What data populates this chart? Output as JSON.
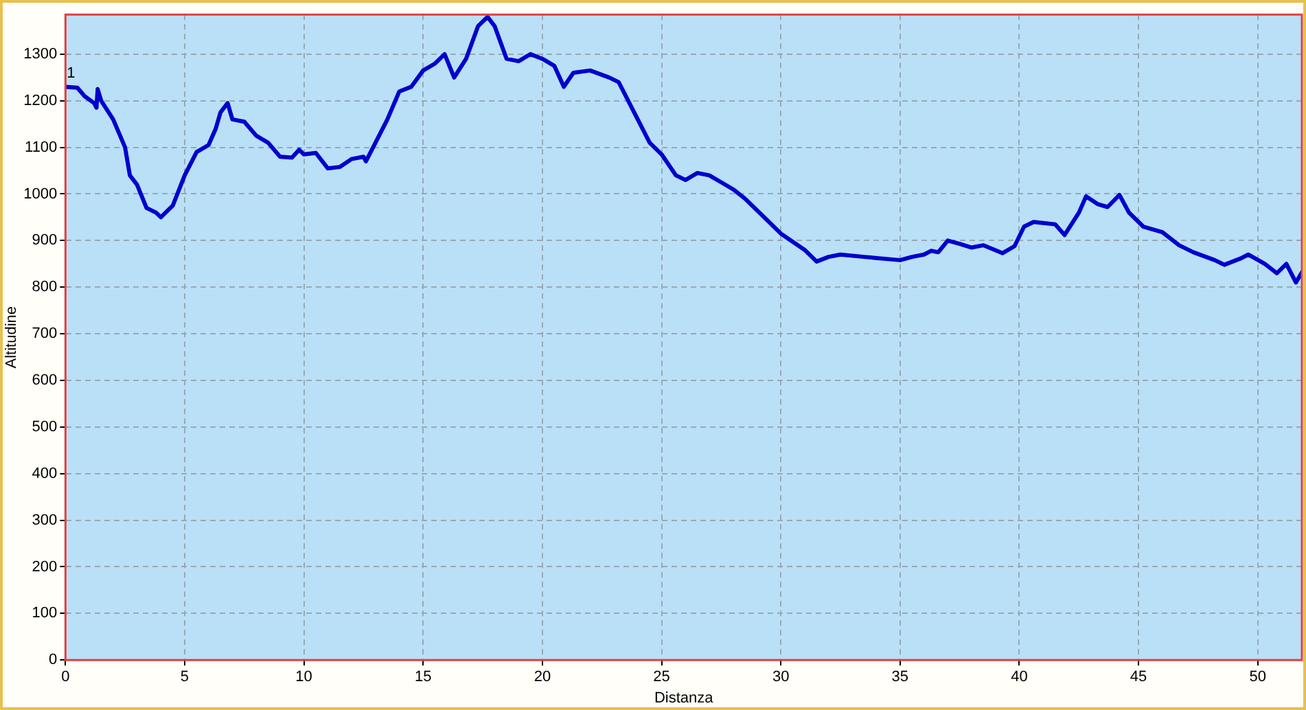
{
  "chart_data": {
    "type": "line",
    "xlabel": "Distanza",
    "ylabel": "Altitudine",
    "xlim": [
      0,
      51.85
    ],
    "ylim": [
      0,
      1385
    ],
    "xticks": [
      0,
      5,
      10,
      15,
      20,
      25,
      30,
      35,
      40,
      45,
      50
    ],
    "yticks": [
      0,
      100,
      200,
      300,
      400,
      500,
      600,
      700,
      800,
      900,
      1000,
      1100,
      1200,
      1300
    ],
    "grid": true,
    "legend": false,
    "marker": "none",
    "line_style": "solid",
    "annotations": [
      {
        "text": "1",
        "x": 0,
        "y": 1230
      }
    ],
    "series": [
      {
        "color": "#0000cc",
        "x": [
          0,
          0.5,
          0.8,
          1.2,
          1.3,
          1.35,
          1.5,
          2.0,
          2.5,
          2.7,
          3.0,
          3.4,
          3.8,
          4.0,
          4.5,
          5.0,
          5.5,
          6.0,
          6.3,
          6.5,
          6.8,
          7.0,
          7.5,
          8.0,
          8.5,
          9.0,
          9.5,
          9.8,
          10.0,
          10.5,
          11.0,
          11.5,
          12.0,
          12.5,
          12.6,
          13.0,
          13.5,
          14.0,
          14.5,
          15.0,
          15.5,
          15.9,
          16.3,
          16.8,
          17.3,
          17.7,
          18.0,
          18.5,
          19.0,
          19.5,
          20.0,
          20.5,
          20.9,
          21.3,
          22.0,
          22.8,
          23.2,
          23.8,
          24.5,
          25.0,
          25.6,
          26.0,
          26.5,
          27.0,
          27.5,
          28.0,
          28.5,
          29.5,
          30.0,
          31.0,
          31.5,
          32.0,
          32.5,
          33.5,
          35.0,
          35.5,
          36.0,
          36.3,
          36.6,
          37.0,
          37.5,
          38.0,
          38.5,
          39.3,
          39.8,
          40.2,
          40.6,
          41.5,
          41.9,
          42.5,
          42.8,
          43.3,
          43.7,
          44.2,
          44.6,
          45.2,
          46.0,
          46.7,
          47.3,
          48.2,
          48.6,
          49.3,
          49.6,
          50.3,
          50.8,
          51.2,
          51.6,
          51.85
        ],
        "values": [
          1230,
          1228,
          1210,
          1195,
          1185,
          1225,
          1200,
          1160,
          1100,
          1040,
          1020,
          970,
          960,
          950,
          975,
          1040,
          1090,
          1105,
          1140,
          1175,
          1195,
          1160,
          1155,
          1125,
          1110,
          1080,
          1078,
          1095,
          1085,
          1088,
          1055,
          1058,
          1075,
          1080,
          1070,
          1110,
          1160,
          1220,
          1230,
          1265,
          1280,
          1300,
          1250,
          1290,
          1360,
          1380,
          1360,
          1290,
          1285,
          1300,
          1290,
          1275,
          1230,
          1260,
          1265,
          1250,
          1240,
          1180,
          1110,
          1085,
          1040,
          1030,
          1045,
          1040,
          1025,
          1010,
          990,
          940,
          915,
          880,
          855,
          865,
          870,
          865,
          858,
          865,
          870,
          878,
          875,
          900,
          893,
          885,
          890,
          873,
          888,
          930,
          940,
          935,
          912,
          960,
          995,
          978,
          972,
          998,
          960,
          930,
          918,
          890,
          875,
          858,
          848,
          862,
          870,
          850,
          830,
          850,
          810,
          832
        ]
      }
    ]
  }
}
